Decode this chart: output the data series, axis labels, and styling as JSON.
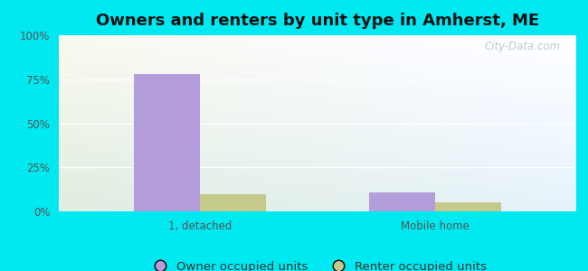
{
  "title": "Owners and renters by unit type in Amherst, ME",
  "categories": [
    "1, detached",
    "Mobile home"
  ],
  "owner_values": [
    78,
    11
  ],
  "renter_values": [
    10,
    5
  ],
  "owner_color": "#b39ddb",
  "renter_color": "#c5c98a",
  "ylim": [
    0,
    100
  ],
  "yticks": [
    0,
    25,
    50,
    75,
    100
  ],
  "ytick_labels": [
    "0%",
    "25%",
    "50%",
    "75%",
    "100%"
  ],
  "outer_bg": "#00e8f0",
  "bar_width": 0.28,
  "legend_labels": [
    "Owner occupied units",
    "Renter occupied units"
  ],
  "watermark": "City-Data.com",
  "title_fontsize": 13,
  "tick_fontsize": 8.5,
  "legend_fontsize": 9.5
}
